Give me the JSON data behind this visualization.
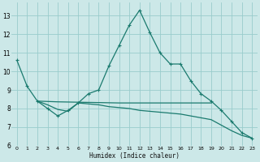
{
  "xlabel": "Humidex (Indice chaleur)",
  "bg_color": "#cce8e8",
  "grid_color": "#99cccc",
  "line_color": "#1a7a6e",
  "x_ticks": [
    0,
    1,
    2,
    3,
    4,
    5,
    6,
    7,
    8,
    9,
    10,
    11,
    12,
    13,
    14,
    15,
    16,
    17,
    18,
    19,
    20,
    21,
    22,
    23
  ],
  "ylim": [
    6.0,
    13.7
  ],
  "yticks": [
    6,
    7,
    8,
    9,
    10,
    11,
    12,
    13
  ],
  "line1_x": [
    0,
    1,
    2,
    3,
    4,
    5,
    6,
    7,
    8,
    9,
    10,
    11,
    12,
    13,
    14,
    15,
    16,
    17,
    18,
    19,
    20,
    21,
    22,
    23
  ],
  "line1_y": [
    10.6,
    9.2,
    8.4,
    8.0,
    7.6,
    7.9,
    8.3,
    8.8,
    9.0,
    10.3,
    11.4,
    12.5,
    13.3,
    12.1,
    11.0,
    10.4,
    10.4,
    9.5,
    8.8,
    8.4,
    7.9,
    7.3,
    6.7,
    6.4
  ],
  "line2_x": [
    2,
    3,
    4,
    5,
    6,
    7,
    8,
    9,
    10,
    11,
    12,
    13,
    14,
    15,
    16,
    17,
    18,
    19
  ],
  "line2_y": [
    8.4,
    8.38,
    8.36,
    8.35,
    8.34,
    8.33,
    8.32,
    8.31,
    8.3,
    8.3,
    8.3,
    8.3,
    8.3,
    8.3,
    8.3,
    8.3,
    8.3,
    8.3
  ],
  "line3_x": [
    2,
    3,
    4,
    5,
    6,
    7,
    8,
    9,
    10,
    11,
    12,
    13,
    14,
    15,
    16,
    17,
    18,
    19,
    20,
    21,
    22,
    23
  ],
  "line3_y": [
    8.4,
    8.2,
    7.95,
    7.85,
    8.3,
    8.25,
    8.2,
    8.1,
    8.05,
    8.0,
    7.9,
    7.85,
    7.8,
    7.75,
    7.7,
    7.6,
    7.5,
    7.4,
    7.1,
    6.8,
    6.55,
    6.4
  ]
}
